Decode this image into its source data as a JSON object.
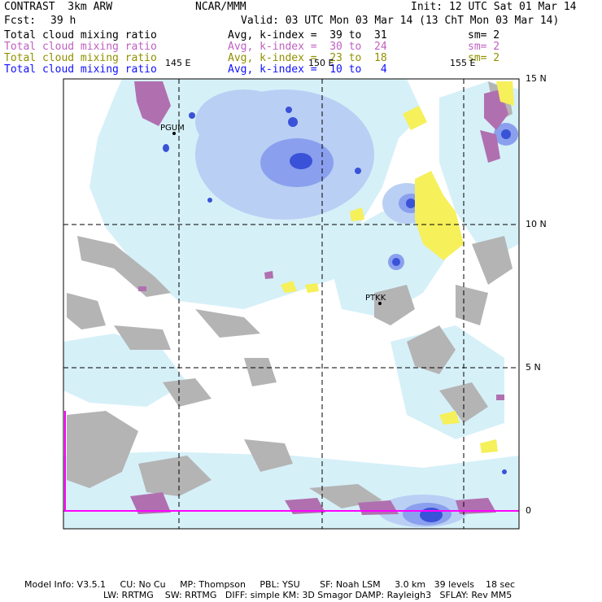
{
  "header": {
    "model": "CONTRAST  3km ARW",
    "org": "NCAR/MMM",
    "init": "Init: 12 UTC Sat 01 Mar 14",
    "fcst_label": "Fcst:",
    "fcst_value": "39 h",
    "valid": "Valid: 03 UTC Mon 03 Mar 14 (13 ChT Mon 03 Mar 14)"
  },
  "legend": [
    {
      "field": "Total cloud mixing ratio",
      "range": "Avg, k-index =  39 to  31",
      "smooth": "sm= 2",
      "color": "#000000"
    },
    {
      "field": "Total cloud mixing ratio",
      "range": "Avg, k-index =  30 to  24",
      "smooth": "sm= 2",
      "color": "#c060c0"
    },
    {
      "field": "Total cloud mixing ratio",
      "range": "Avg, k-index =  23 to  18",
      "smooth": "sm= 2",
      "color": "#909000"
    },
    {
      "field": "Total cloud mixing ratio",
      "range": "Avg, k-index =  10 to   4",
      "smooth": "",
      "color": "#1010ff"
    }
  ],
  "axes": {
    "lon_labels": [
      "145 E",
      "150 E",
      "155 E"
    ],
    "lat_labels": [
      "15 N",
      "10 N",
      "5 N",
      "0"
    ]
  },
  "stations": [
    "PGUM",
    "PTKK"
  ],
  "footer": {
    "line1": "Model Info: V3.5.1     CU: No Cu     MP: Thompson     PBL: YSU       SF: Noah LSM     3.0 km   39 levels    18 sec",
    "line2": "LW: RRTMG    SW: RRTMG   DIFF: simple KM: 3D Smagor DAMP: Rayleigh3   SFLAY: Rev MM5"
  },
  "colors": {
    "light_cyan": "#d6f0f8",
    "light_blue": "#b9cff4",
    "blue": "#8aa0ee",
    "deep_blue": "#3a52d8",
    "gray": "#b4b4b4",
    "purple": "#b070b0",
    "yellow": "#f6f05a",
    "magenta": "#ff00ff"
  }
}
